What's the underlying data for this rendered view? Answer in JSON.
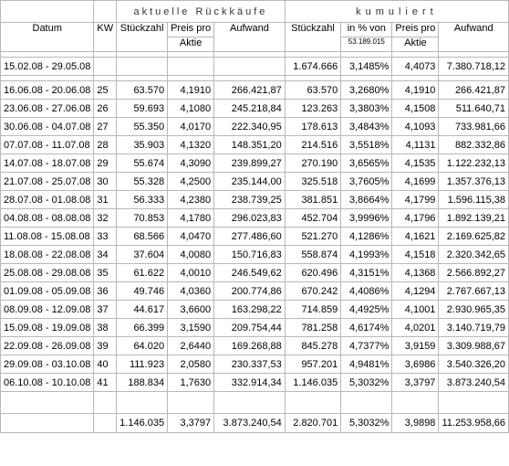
{
  "header": {
    "datum": "Datum",
    "kw": "KW",
    "group_current": "aktuelle Rückkäufe",
    "group_cumulative": "kumuliert",
    "stueckzahl": "Stückzahl",
    "preis_pro": "Preis pro",
    "aktie": "Aktie",
    "aufwand": "Aufwand",
    "in_pct_von": "in % von",
    "base_shares": "53.189.015"
  },
  "opening": {
    "datum": "15.02.08 - 29.05.08",
    "cum_stueck": "1.674.666",
    "cum_pct": "3,1485%",
    "cum_preis": "4,4073",
    "cum_aufwand": "7.380.718,12"
  },
  "rows": [
    {
      "datum": "16.06.08 - 20.06.08",
      "kw": "25",
      "stueck": "63.570",
      "preis": "4,1910",
      "aufwand": "266.421,87",
      "cum_stueck": "63.570",
      "cum_pct": "3,2680%",
      "cum_preis": "4,1910",
      "cum_aufwand": "266.421,87"
    },
    {
      "datum": "23.06.08 - 27.06.08",
      "kw": "26",
      "stueck": "59.693",
      "preis": "4,1080",
      "aufwand": "245.218,84",
      "cum_stueck": "123.263",
      "cum_pct": "3,3803%",
      "cum_preis": "4,1508",
      "cum_aufwand": "511.640,71"
    },
    {
      "datum": "30.06.08 - 04.07.08",
      "kw": "27",
      "stueck": "55.350",
      "preis": "4,0170",
      "aufwand": "222.340,95",
      "cum_stueck": "178.613",
      "cum_pct": "3,4843%",
      "cum_preis": "4,1093",
      "cum_aufwand": "733.981,66"
    },
    {
      "datum": "07.07.08 - 11.07.08",
      "kw": "28",
      "stueck": "35.903",
      "preis": "4,1320",
      "aufwand": "148.351,20",
      "cum_stueck": "214.516",
      "cum_pct": "3,5518%",
      "cum_preis": "4,1131",
      "cum_aufwand": "882.332,86"
    },
    {
      "datum": "14.07.08 - 18.07.08",
      "kw": "29",
      "stueck": "55.674",
      "preis": "4,3090",
      "aufwand": "239.899,27",
      "cum_stueck": "270.190",
      "cum_pct": "3,6565%",
      "cum_preis": "4,1535",
      "cum_aufwand": "1.122.232,13"
    },
    {
      "datum": "21.07.08 - 25.07.08",
      "kw": "30",
      "stueck": "55.328",
      "preis": "4,2500",
      "aufwand": "235.144,00",
      "cum_stueck": "325.518",
      "cum_pct": "3,7605%",
      "cum_preis": "4,1699",
      "cum_aufwand": "1.357.376,13"
    },
    {
      "datum": "28.07.08 - 01.08.08",
      "kw": "31",
      "stueck": "56.333",
      "preis": "4,2380",
      "aufwand": "238.739,25",
      "cum_stueck": "381.851",
      "cum_pct": "3,8664%",
      "cum_preis": "4,1799",
      "cum_aufwand": "1.596.115,38"
    },
    {
      "datum": "04.08.08 - 08.08.08",
      "kw": "32",
      "stueck": "70.853",
      "preis": "4,1780",
      "aufwand": "296.023,83",
      "cum_stueck": "452.704",
      "cum_pct": "3,9996%",
      "cum_preis": "4,1796",
      "cum_aufwand": "1.892.139,21"
    },
    {
      "datum": "11.08.08 - 15.08.08",
      "kw": "33",
      "stueck": "68.566",
      "preis": "4,0470",
      "aufwand": "277.486,60",
      "cum_stueck": "521.270",
      "cum_pct": "4,1286%",
      "cum_preis": "4,1621",
      "cum_aufwand": "2.169.625,82"
    },
    {
      "datum": "18.08.08 - 22.08.08",
      "kw": "34",
      "stueck": "37.604",
      "preis": "4,0080",
      "aufwand": "150.716,83",
      "cum_stueck": "558.874",
      "cum_pct": "4,1993%",
      "cum_preis": "4,1518",
      "cum_aufwand": "2.320.342,65"
    },
    {
      "datum": "25.08.08 - 29.08.08",
      "kw": "35",
      "stueck": "61.622",
      "preis": "4,0010",
      "aufwand": "246.549,62",
      "cum_stueck": "620.496",
      "cum_pct": "4,3151%",
      "cum_preis": "4,1368",
      "cum_aufwand": "2.566.892,27"
    },
    {
      "datum": "01.09.08 - 05.09.08",
      "kw": "36",
      "stueck": "49.746",
      "preis": "4,0360",
      "aufwand": "200.774,86",
      "cum_stueck": "670.242",
      "cum_pct": "4,4086%",
      "cum_preis": "4,1294",
      "cum_aufwand": "2.767.667,13"
    },
    {
      "datum": "08.09.08 - 12.09.08",
      "kw": "37",
      "stueck": "44.617",
      "preis": "3,6600",
      "aufwand": "163.298,22",
      "cum_stueck": "714.859",
      "cum_pct": "4,4925%",
      "cum_preis": "4,1001",
      "cum_aufwand": "2.930.965,35"
    },
    {
      "datum": "15.09.08 - 19.09.08",
      "kw": "38",
      "stueck": "66.399",
      "preis": "3,1590",
      "aufwand": "209.754,44",
      "cum_stueck": "781.258",
      "cum_pct": "4,6174%",
      "cum_preis": "4,0201",
      "cum_aufwand": "3.140.719,79"
    },
    {
      "datum": "22.09.08 - 26.09.08",
      "kw": "39",
      "stueck": "64.020",
      "preis": "2,6440",
      "aufwand": "169.268,88",
      "cum_stueck": "845.278",
      "cum_pct": "4,7377%",
      "cum_preis": "3,9159",
      "cum_aufwand": "3.309.988,67"
    },
    {
      "datum": "29.09.08 - 03.10.08",
      "kw": "40",
      "stueck": "111.923",
      "preis": "2,0580",
      "aufwand": "230.337,53",
      "cum_stueck": "957.201",
      "cum_pct": "4,9481%",
      "cum_preis": "3,6986",
      "cum_aufwand": "3.540.326,20"
    },
    {
      "datum": "06.10.08 - 10.10.08",
      "kw": "41",
      "stueck": "188.834",
      "preis": "1,7630",
      "aufwand": "332.914,34",
      "cum_stueck": "1.146.035",
      "cum_pct": "5,3032%",
      "cum_preis": "3,3797",
      "cum_aufwand": "3.873.240,54"
    }
  ],
  "totals": {
    "stueck": "1.146.035",
    "preis": "3,3797",
    "aufwand": "3.873.240,54",
    "cum_stueck": "2.820.701",
    "cum_pct": "5,3032%",
    "cum_preis": "3,9898",
    "cum_aufwand": "11.253.958,66"
  }
}
